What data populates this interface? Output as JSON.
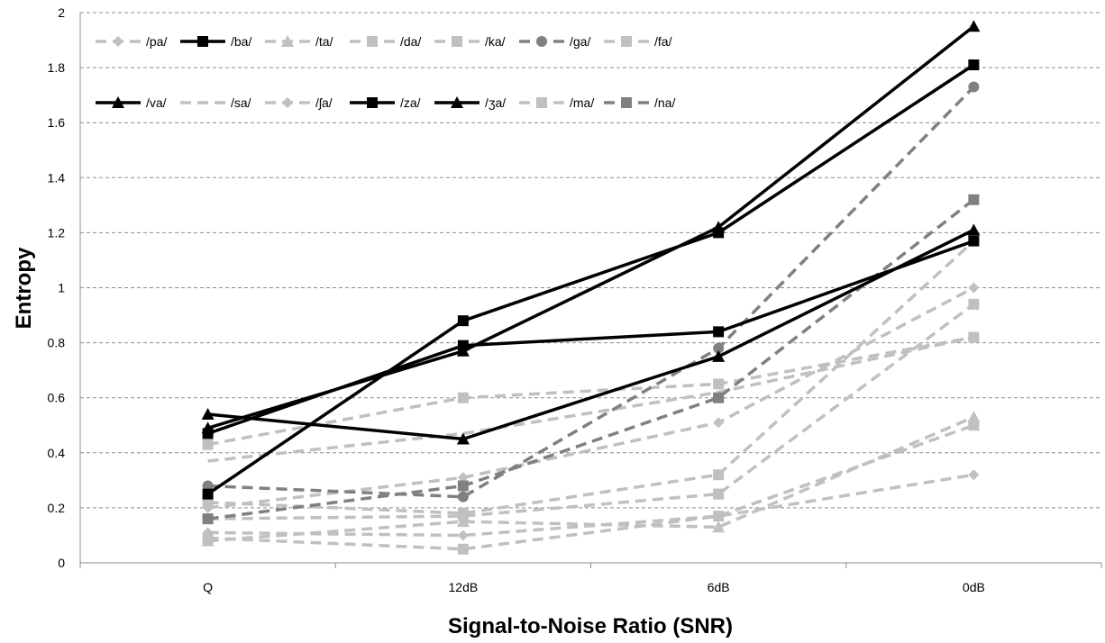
{
  "chart_data": {
    "type": "line",
    "title": "",
    "xlabel": "Signal-to-Noise Ratio (SNR)",
    "ylabel": "Entropy",
    "categories": [
      "Q",
      "12dB",
      "6dB",
      "0dB"
    ],
    "ylim": [
      0,
      2
    ],
    "yticks": [
      "0",
      "0.2",
      "0.4",
      "0.6",
      "0.8",
      "1",
      "1.2",
      "1.4",
      "1.6",
      "1.8",
      "2"
    ],
    "grid": "horizontal dashed",
    "legend_position": "top-left",
    "series": [
      {
        "name": "/pa/",
        "style": "dashed",
        "color": "#c0c0c0",
        "marker": "diamond",
        "values": [
          0.11,
          0.1,
          0.17,
          0.32
        ]
      },
      {
        "name": "/ba/",
        "style": "solid",
        "color": "#000000",
        "marker": "square",
        "values": [
          0.25,
          0.88,
          1.2,
          1.81
        ]
      },
      {
        "name": "/ta/",
        "style": "dashed",
        "color": "#c0c0c0",
        "marker": "triangle",
        "values": [
          0.08,
          0.15,
          0.13,
          0.53
        ]
      },
      {
        "name": "/da/",
        "style": "dashed",
        "color": "#c0c0c0",
        "marker": "square",
        "values": [
          0.22,
          0.18,
          0.32,
          1.17
        ]
      },
      {
        "name": "/ka/",
        "style": "dashed",
        "color": "#c0c0c0",
        "marker": "square",
        "values": [
          0.09,
          0.05,
          0.17,
          0.5
        ]
      },
      {
        "name": "/ga/",
        "style": "dashed",
        "color": "#808080",
        "marker": "circle",
        "values": [
          0.28,
          0.24,
          0.78,
          1.73
        ]
      },
      {
        "name": "/fa/",
        "style": "dashed",
        "color": "#c0c0c0",
        "marker": "square",
        "values": [
          0.43,
          0.6,
          0.65,
          0.82
        ]
      },
      {
        "name": "/va/",
        "style": "solid",
        "color": "#000000",
        "marker": "triangle",
        "values": [
          0.49,
          0.77,
          1.22,
          1.95
        ]
      },
      {
        "name": "/sa/",
        "style": "dashed",
        "color": "#c0c0c0",
        "marker": "none",
        "values": [
          0.37,
          0.47,
          0.62,
          0.82
        ]
      },
      {
        "name": "/ʃa/",
        "style": "dashed",
        "color": "#c0c0c0",
        "marker": "diamond",
        "values": [
          0.2,
          0.31,
          0.51,
          1.0
        ]
      },
      {
        "name": "/za/",
        "style": "solid",
        "color": "#000000",
        "marker": "square",
        "values": [
          0.47,
          0.79,
          0.84,
          1.17
        ]
      },
      {
        "name": "/ʒa/",
        "style": "solid",
        "color": "#000000",
        "marker": "triangle",
        "values": [
          0.54,
          0.45,
          0.75,
          1.21
        ]
      },
      {
        "name": "/ma/",
        "style": "dashed",
        "color": "#c0c0c0",
        "marker": "square",
        "values": [
          0.16,
          0.17,
          0.25,
          0.94
        ]
      },
      {
        "name": "/na/",
        "style": "dashed",
        "color": "#808080",
        "marker": "square",
        "values": [
          0.16,
          0.28,
          0.6,
          1.32
        ]
      }
    ]
  }
}
